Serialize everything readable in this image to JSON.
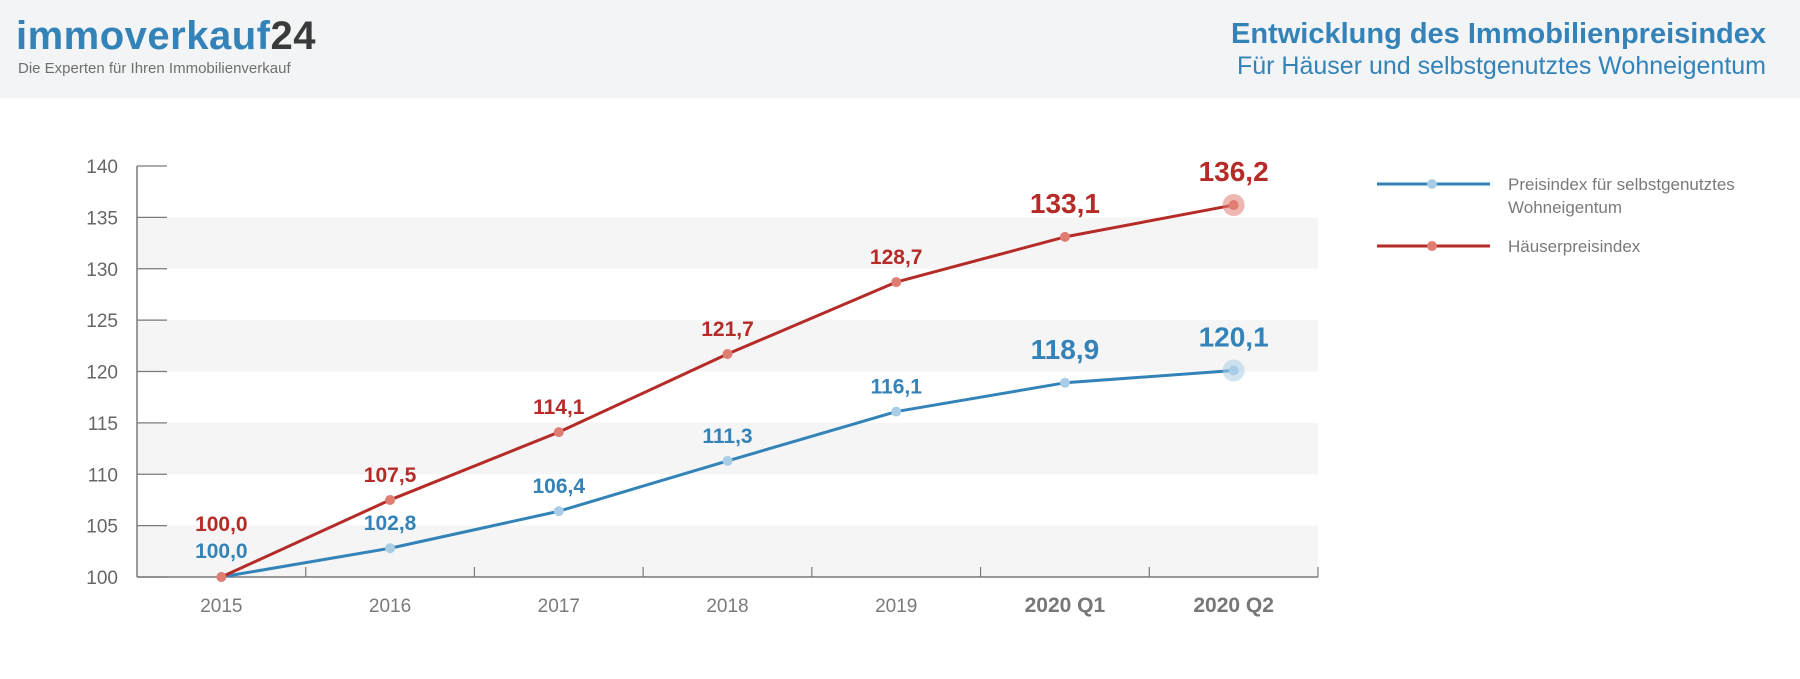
{
  "brand": {
    "name": "immoverkauf",
    "name_accent": "24",
    "tagline": "Die Experten für Ihren Immobilienverkauf"
  },
  "header": {
    "title": "Entwicklung des Immobilienpreisindex",
    "subtitle": "Für Häuser und selbstgenutztes Wohneigentum"
  },
  "colors": {
    "blue": "#3383b8",
    "red": "#b52b27",
    "blue_marker": "#a9cde6",
    "red_marker": "#e07d73",
    "axis": "#7a7a7a",
    "band": "#f5f5f5"
  },
  "chart_data": {
    "type": "line",
    "categories": [
      "2015",
      "2016",
      "2017",
      "2018",
      "2019",
      "2020 Q1",
      "2020 Q2"
    ],
    "ylim": [
      100,
      140
    ],
    "yticks": [
      "100",
      "105",
      "110",
      "115",
      "120",
      "125",
      "130",
      "135",
      "140"
    ],
    "grid": "alternating horizontal bands",
    "legend_position": "right",
    "series": [
      {
        "name": "Preisindex für selbstgenutztes Wohneigentum",
        "legend_lines": [
          "Preisindex für selbstgenutztes",
          "Wohneigentum"
        ],
        "color": "#3383b8",
        "values": [
          100.0,
          102.8,
          106.4,
          111.3,
          116.1,
          118.9,
          120.1
        ],
        "labels": [
          "100,0",
          "102,8",
          "106,4",
          "111,3",
          "116,1",
          "118,9",
          "120,1"
        ]
      },
      {
        "name": "Häuserpreisindex",
        "legend_lines": [
          "Häuserpreisindex"
        ],
        "color": "#b52b27",
        "values": [
          100.0,
          107.5,
          114.1,
          121.7,
          128.7,
          133.1,
          136.2
        ],
        "labels": [
          "100,0",
          "107,5",
          "114,1",
          "121,7",
          "128,7",
          "133,1",
          "136,2"
        ]
      }
    ]
  }
}
